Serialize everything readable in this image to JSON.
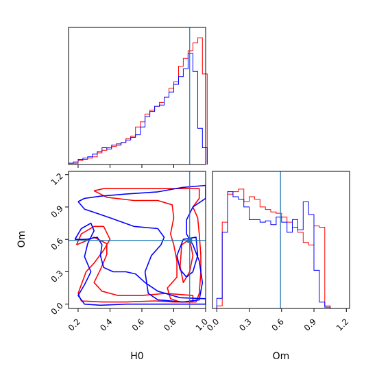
{
  "colors": {
    "series_a": "#ff0000",
    "series_b": "#0000ff",
    "truth": "#1f77b4",
    "axes": "#000000"
  },
  "chart_data": [
    {
      "panel": "top-left",
      "type": "histogram",
      "xlim": [
        0.14,
        1.0
      ],
      "ylim": [
        0,
        1
      ],
      "ylabel": "",
      "truth_x": 0.9,
      "x_ticks_labels_shown": false,
      "x_ticks": [
        0.2,
        0.4,
        0.6,
        0.8
      ],
      "series": [
        {
          "color": "red",
          "edges": [
            0.14,
            0.17,
            0.2,
            0.23,
            0.26,
            0.29,
            0.32,
            0.35,
            0.38,
            0.41,
            0.44,
            0.47,
            0.5,
            0.53,
            0.56,
            0.59,
            0.62,
            0.65,
            0.68,
            0.71,
            0.74,
            0.77,
            0.8,
            0.83,
            0.86,
            0.89,
            0.92,
            0.95,
            0.98
          ],
          "heights": [
            0.01,
            0.01,
            0.03,
            0.04,
            0.05,
            0.06,
            0.09,
            0.11,
            0.13,
            0.14,
            0.16,
            0.17,
            0.2,
            0.22,
            0.29,
            0.33,
            0.39,
            0.42,
            0.45,
            0.48,
            0.52,
            0.59,
            0.64,
            0.76,
            0.82,
            0.88,
            0.94,
            0.98,
            0.7
          ]
        },
        {
          "color": "blue",
          "edges": [
            0.14,
            0.17,
            0.2,
            0.23,
            0.26,
            0.29,
            0.32,
            0.35,
            0.38,
            0.41,
            0.44,
            0.47,
            0.5,
            0.53,
            0.56,
            0.59,
            0.62,
            0.65,
            0.68,
            0.71,
            0.74,
            0.77,
            0.8,
            0.83,
            0.86,
            0.89,
            0.92,
            0.95,
            0.98
          ],
          "heights": [
            0.01,
            0.02,
            0.04,
            0.05,
            0.06,
            0.08,
            0.1,
            0.13,
            0.12,
            0.15,
            0.15,
            0.17,
            0.19,
            0.21,
            0.23,
            0.29,
            0.37,
            0.41,
            0.45,
            0.46,
            0.52,
            0.56,
            0.62,
            0.68,
            0.74,
            0.86,
            0.72,
            0.28,
            0.13
          ]
        }
      ]
    },
    {
      "panel": "bottom-left",
      "type": "contour",
      "xlabel": "H0",
      "ylabel": "Om",
      "xlim": [
        0.14,
        1.0
      ],
      "ylim": [
        -0.04,
        1.23
      ],
      "x_ticks": [
        "0.2",
        "0.4",
        "0.6",
        "0.8",
        "1.0"
      ],
      "y_ticks": [
        "0.0",
        "0.3",
        "0.6",
        "0.9",
        "1.2"
      ],
      "truth": [
        0.9,
        0.59
      ],
      "series": [
        {
          "color": "red",
          "contours": [
            [
              [
                0.3,
                1.05
              ],
              [
                0.36,
                1.07
              ],
              [
                0.5,
                1.07
              ],
              [
                0.65,
                1.07
              ],
              [
                0.8,
                1.07
              ],
              [
                0.96,
                1.07
              ],
              [
                0.96,
                0.98
              ],
              [
                0.92,
                0.9
              ],
              [
                0.95,
                0.8
              ],
              [
                0.96,
                0.65
              ],
              [
                0.97,
                0.45
              ],
              [
                0.97,
                0.3
              ],
              [
                0.96,
                0.1
              ],
              [
                0.94,
                0.02
              ],
              [
                0.84,
                0.02
              ],
              [
                0.78,
                0.05
              ],
              [
                0.76,
                0.15
              ],
              [
                0.82,
                0.25
              ],
              [
                0.82,
                0.4
              ],
              [
                0.8,
                0.55
              ],
              [
                0.78,
                0.65
              ],
              [
                0.8,
                0.8
              ],
              [
                0.79,
                0.92
              ],
              [
                0.7,
                0.96
              ],
              [
                0.55,
                0.96
              ],
              [
                0.38,
                0.99
              ],
              [
                0.3,
                1.05
              ]
            ],
            [
              [
                0.19,
                0.55
              ],
              [
                0.22,
                0.65
              ],
              [
                0.3,
                0.72
              ],
              [
                0.36,
                0.72
              ],
              [
                0.4,
                0.6
              ],
              [
                0.36,
                0.5
              ],
              [
                0.3,
                0.38
              ],
              [
                0.25,
                0.3
              ],
              [
                0.22,
                0.18
              ],
              [
                0.2,
                0.1
              ],
              [
                0.22,
                0.03
              ],
              [
                0.35,
                0.02
              ],
              [
                0.5,
                0.02
              ],
              [
                0.68,
                0.03
              ],
              [
                0.8,
                0.02
              ],
              [
                0.92,
                0.02
              ],
              [
                0.92,
                0.08
              ],
              [
                0.75,
                0.1
              ],
              [
                0.6,
                0.08
              ],
              [
                0.45,
                0.08
              ],
              [
                0.35,
                0.12
              ],
              [
                0.3,
                0.2
              ],
              [
                0.34,
                0.32
              ],
              [
                0.38,
                0.46
              ],
              [
                0.38,
                0.56
              ],
              [
                0.3,
                0.62
              ],
              [
                0.24,
                0.58
              ],
              [
                0.19,
                0.55
              ]
            ],
            [
              [
                0.85,
                0.55
              ],
              [
                0.9,
                0.6
              ],
              [
                0.92,
                0.45
              ],
              [
                0.9,
                0.3
              ],
              [
                0.86,
                0.2
              ],
              [
                0.84,
                0.35
              ],
              [
                0.85,
                0.55
              ]
            ]
          ]
        },
        {
          "color": "blue",
          "contours": [
            [
              [
                0.2,
                0.95
              ],
              [
                0.24,
                0.98
              ],
              [
                0.34,
                1.0
              ],
              [
                0.5,
                1.02
              ],
              [
                0.7,
                1.04
              ],
              [
                0.85,
                1.08
              ],
              [
                1.0,
                1.1
              ],
              [
                1.0,
                0.98
              ],
              [
                0.92,
                0.9
              ],
              [
                0.88,
                0.78
              ],
              [
                0.88,
                0.65
              ],
              [
                0.92,
                0.55
              ],
              [
                0.96,
                0.4
              ],
              [
                0.98,
                0.2
              ],
              [
                0.96,
                0.04
              ],
              [
                0.86,
                0.02
              ],
              [
                0.7,
                0.04
              ],
              [
                0.64,
                0.1
              ],
              [
                0.62,
                0.3
              ],
              [
                0.66,
                0.45
              ],
              [
                0.72,
                0.55
              ],
              [
                0.74,
                0.62
              ],
              [
                0.7,
                0.7
              ],
              [
                0.55,
                0.72
              ],
              [
                0.4,
                0.8
              ],
              [
                0.3,
                0.85
              ],
              [
                0.24,
                0.88
              ],
              [
                0.2,
                0.95
              ]
            ],
            [
              [
                0.18,
                0.6
              ],
              [
                0.22,
                0.7
              ],
              [
                0.28,
                0.75
              ],
              [
                0.3,
                0.68
              ],
              [
                0.26,
                0.56
              ],
              [
                0.24,
                0.44
              ],
              [
                0.28,
                0.3
              ],
              [
                0.24,
                0.18
              ],
              [
                0.2,
                0.08
              ],
              [
                0.24,
                0.0
              ],
              [
                0.34,
                -0.01
              ],
              [
                0.5,
                0.0
              ],
              [
                0.66,
                0.0
              ],
              [
                0.84,
                0.0
              ],
              [
                1.0,
                0.0
              ],
              [
                1.0,
                0.05
              ],
              [
                0.84,
                0.06
              ],
              [
                0.7,
                0.12
              ],
              [
                0.62,
                0.2
              ],
              [
                0.56,
                0.28
              ],
              [
                0.5,
                0.3
              ],
              [
                0.42,
                0.3
              ],
              [
                0.36,
                0.34
              ],
              [
                0.34,
                0.45
              ],
              [
                0.35,
                0.55
              ],
              [
                0.32,
                0.62
              ],
              [
                0.25,
                0.6
              ],
              [
                0.18,
                0.6
              ]
            ],
            [
              [
                0.82,
                0.45
              ],
              [
                0.86,
                0.6
              ],
              [
                0.94,
                0.62
              ],
              [
                0.95,
                0.45
              ],
              [
                0.92,
                0.3
              ],
              [
                0.88,
                0.25
              ],
              [
                0.84,
                0.32
              ],
              [
                0.82,
                0.45
              ]
            ]
          ]
        }
      ]
    },
    {
      "panel": "bottom-right",
      "type": "histogram",
      "xlabel": "Om",
      "xlim": [
        -0.04,
        1.23
      ],
      "ylim": [
        0,
        1
      ],
      "x_ticks": [
        "0.0",
        "0.3",
        "0.6",
        "0.9",
        "1.2"
      ],
      "truth_x": 0.59,
      "series": [
        {
          "color": "red",
          "edges": [
            0.0,
            0.05,
            0.1,
            0.15,
            0.2,
            0.25,
            0.3,
            0.35,
            0.4,
            0.45,
            0.5,
            0.55,
            0.6,
            0.65,
            0.7,
            0.75,
            0.8,
            0.85,
            0.9,
            0.95,
            1.0,
            1.05
          ],
          "heights": [
            0.02,
            0.68,
            0.9,
            0.92,
            0.94,
            0.84,
            0.88,
            0.86,
            0.8,
            0.78,
            0.76,
            0.75,
            0.72,
            0.68,
            0.64,
            0.6,
            0.52,
            0.5,
            0.65,
            0.64,
            0.02
          ]
        },
        {
          "color": "blue",
          "edges": [
            0.0,
            0.05,
            0.1,
            0.15,
            0.2,
            0.25,
            0.3,
            0.35,
            0.4,
            0.45,
            0.5,
            0.55,
            0.6,
            0.65,
            0.7,
            0.75,
            0.8,
            0.85,
            0.9,
            0.95,
            1.0,
            1.05
          ],
          "heights": [
            0.08,
            0.6,
            0.92,
            0.88,
            0.86,
            0.8,
            0.7,
            0.7,
            0.68,
            0.69,
            0.66,
            0.72,
            0.68,
            0.6,
            0.7,
            0.62,
            0.84,
            0.74,
            0.3,
            0.05,
            0.01
          ]
        }
      ]
    }
  ]
}
